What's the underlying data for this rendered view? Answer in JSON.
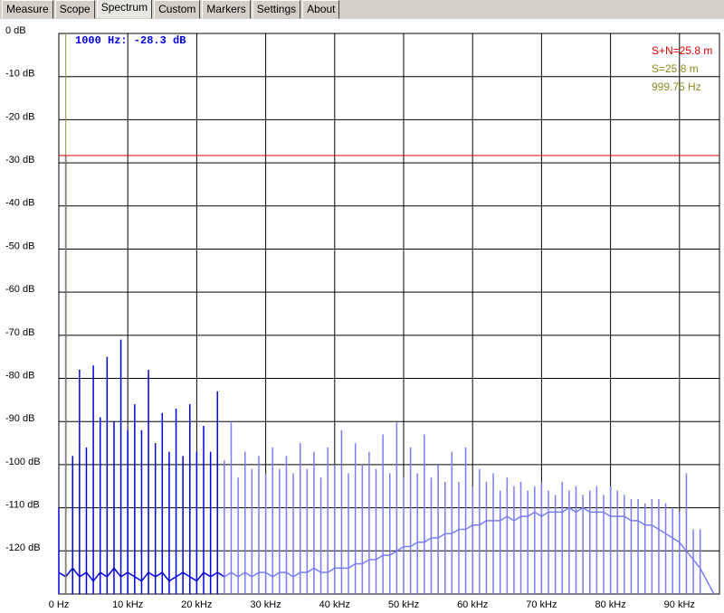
{
  "ui": {
    "tabs": [
      "Measure",
      "Scope",
      "Spectrum",
      "Custom",
      "Markers",
      "Settings",
      "About"
    ],
    "active_tab": 2
  },
  "chart_data": {
    "type": "spectrum",
    "readout": "1000 Hz:   -28.3 dB",
    "info": [
      {
        "text": "S+N=25.8 m",
        "color": "#e00000"
      },
      {
        "text": "S=25.8 m",
        "color": "#8a8a1e"
      },
      {
        "text": "999.75 Hz",
        "color": "#8a8a1e"
      }
    ],
    "markers": {
      "level": -28.3,
      "level_color": "#e00000",
      "frequency": 1.0,
      "frequency_color": "#9a9a40"
    },
    "xlim": [
      0,
      95.8
    ],
    "ylim": [
      -130,
      0
    ],
    "grid": true,
    "xticks": [
      {
        "value": 0,
        "label": "0 Hz"
      },
      {
        "value": 10,
        "label": "10 kHz"
      },
      {
        "value": 20,
        "label": "20 kHz"
      },
      {
        "value": 30,
        "label": "30 kHz"
      },
      {
        "value": 40,
        "label": "40 kHz"
      },
      {
        "value": 50,
        "label": "50 kHz"
      },
      {
        "value": 60,
        "label": "60 kHz"
      },
      {
        "value": 70,
        "label": "70 kHz"
      },
      {
        "value": 80,
        "label": "80 kHz"
      },
      {
        "value": 90,
        "label": "90 kHz"
      }
    ],
    "yticks": [
      {
        "value": 0,
        "label": "0 dB"
      },
      {
        "value": -10,
        "label": "-10 dB"
      },
      {
        "value": -20,
        "label": "-20 dB"
      },
      {
        "value": -30,
        "label": "-30 dB"
      },
      {
        "value": -40,
        "label": "-40 dB"
      },
      {
        "value": -50,
        "label": "-50 dB"
      },
      {
        "value": -60,
        "label": "-60 dB"
      },
      {
        "value": -70,
        "label": "-70 dB"
      },
      {
        "value": -80,
        "label": "-80 dB"
      },
      {
        "value": -90,
        "label": "-90 dB"
      },
      {
        "value": -100,
        "label": "-100 dB"
      },
      {
        "value": -110,
        "label": "-110 dB"
      },
      {
        "value": -120,
        "label": "-120 dB"
      }
    ],
    "series": [
      {
        "style": "line",
        "color": "#0000e0",
        "x": [
          0,
          1,
          2,
          3,
          4,
          5,
          6,
          7,
          8,
          9,
          10,
          11,
          12,
          13,
          14,
          15,
          16,
          17,
          18,
          19,
          20,
          21,
          22,
          23,
          24
        ],
        "values": [
          -125,
          -126,
          -124,
          -126,
          -125,
          -127,
          -125,
          -126,
          -124,
          -126,
          -125,
          -126,
          -127,
          -125,
          -126,
          -125,
          -127,
          -126,
          -125,
          -126,
          -127,
          -125,
          -126,
          -125,
          -126
        ]
      },
      {
        "style": "line",
        "color": "#7b7bff",
        "x": [
          24,
          25,
          26,
          27,
          28,
          29,
          30,
          31,
          32,
          33,
          34,
          35,
          36,
          37,
          38,
          39,
          40,
          41,
          42,
          43,
          44,
          45,
          46,
          47,
          48,
          49,
          50,
          51,
          52,
          53,
          54,
          55,
          56,
          57,
          58,
          59,
          60,
          61,
          62,
          63,
          64,
          65,
          66,
          67,
          68,
          69,
          70,
          71,
          72,
          73,
          74,
          75,
          76,
          77,
          78,
          79,
          80,
          81,
          82,
          83,
          84,
          85,
          86,
          87,
          88,
          89,
          90,
          91,
          92,
          93,
          94,
          95
        ],
        "values": [
          -126,
          -125,
          -126,
          -125,
          -126,
          -125,
          -125,
          -126,
          -125,
          -125,
          -126,
          -125,
          -125,
          -124,
          -125,
          -125,
          -124,
          -124,
          -124,
          -123,
          -123,
          -122,
          -122,
          -121,
          -121,
          -120,
          -119,
          -119,
          -118,
          -118,
          -117,
          -117,
          -116,
          -116,
          -115,
          -115,
          -114,
          -114,
          -113,
          -113,
          -113,
          -112,
          -113,
          -112,
          -112,
          -111,
          -112,
          -111,
          -111,
          -111,
          -110,
          -111,
          -110,
          -111,
          -111,
          -111,
          -112,
          -112,
          -112,
          -113,
          -113,
          -114,
          -114,
          -115,
          -116,
          -117,
          -118,
          -120,
          -122,
          -124,
          -127,
          -130
        ]
      },
      {
        "style": "stem",
        "color": "#0000e0",
        "x": [
          0,
          1,
          2,
          3,
          4,
          5,
          6,
          7,
          8,
          9,
          10,
          11,
          12,
          13,
          14,
          15,
          16,
          17,
          18,
          19,
          20,
          21,
          22,
          23
        ],
        "values": [
          -110,
          -28.3,
          -98,
          -78,
          -96,
          -77,
          -89,
          -75,
          -90,
          -71,
          -92,
          -86,
          -92,
          -78,
          -95,
          -88,
          -97,
          -87,
          -98,
          -86,
          -97,
          -91,
          -97,
          -83
        ]
      },
      {
        "style": "stem",
        "color": "#7b7bff",
        "x": [
          24,
          25,
          26,
          27,
          28,
          29,
          30,
          31,
          32,
          33,
          34,
          35,
          36,
          37,
          38,
          39,
          40,
          41,
          42,
          43,
          44,
          45,
          46,
          47,
          48,
          49,
          50,
          51,
          52,
          53,
          54,
          55,
          56,
          57,
          58,
          59,
          60,
          61,
          62,
          63,
          64,
          65,
          66,
          67,
          68,
          69,
          70,
          71,
          72,
          73,
          74,
          75,
          76,
          77,
          78,
          79,
          80,
          81,
          82,
          83,
          84,
          85,
          86,
          87,
          88,
          89,
          90,
          91,
          92,
          93
        ],
        "values": [
          -99,
          -90,
          -103,
          -97,
          -101,
          -98,
          -102,
          -96,
          -101,
          -98,
          -102,
          -95,
          -101,
          -97,
          -103,
          -96,
          -100,
          -92,
          -102,
          -95,
          -100,
          -97,
          -101,
          -93,
          -102,
          -90,
          -103,
          -96,
          -102,
          -93,
          -103,
          -100,
          -104,
          -97,
          -104,
          -96,
          -105,
          -101,
          -104,
          -102,
          -106,
          -103,
          -105,
          -104,
          -106,
          -105,
          -104,
          -106,
          -107,
          -104,
          -106,
          -105,
          -107,
          -106,
          -105,
          -107,
          -105,
          -106,
          -107,
          -108,
          -108,
          -109,
          -108,
          -108,
          -109,
          -110,
          -111,
          -102,
          -115,
          -115
        ]
      }
    ]
  }
}
